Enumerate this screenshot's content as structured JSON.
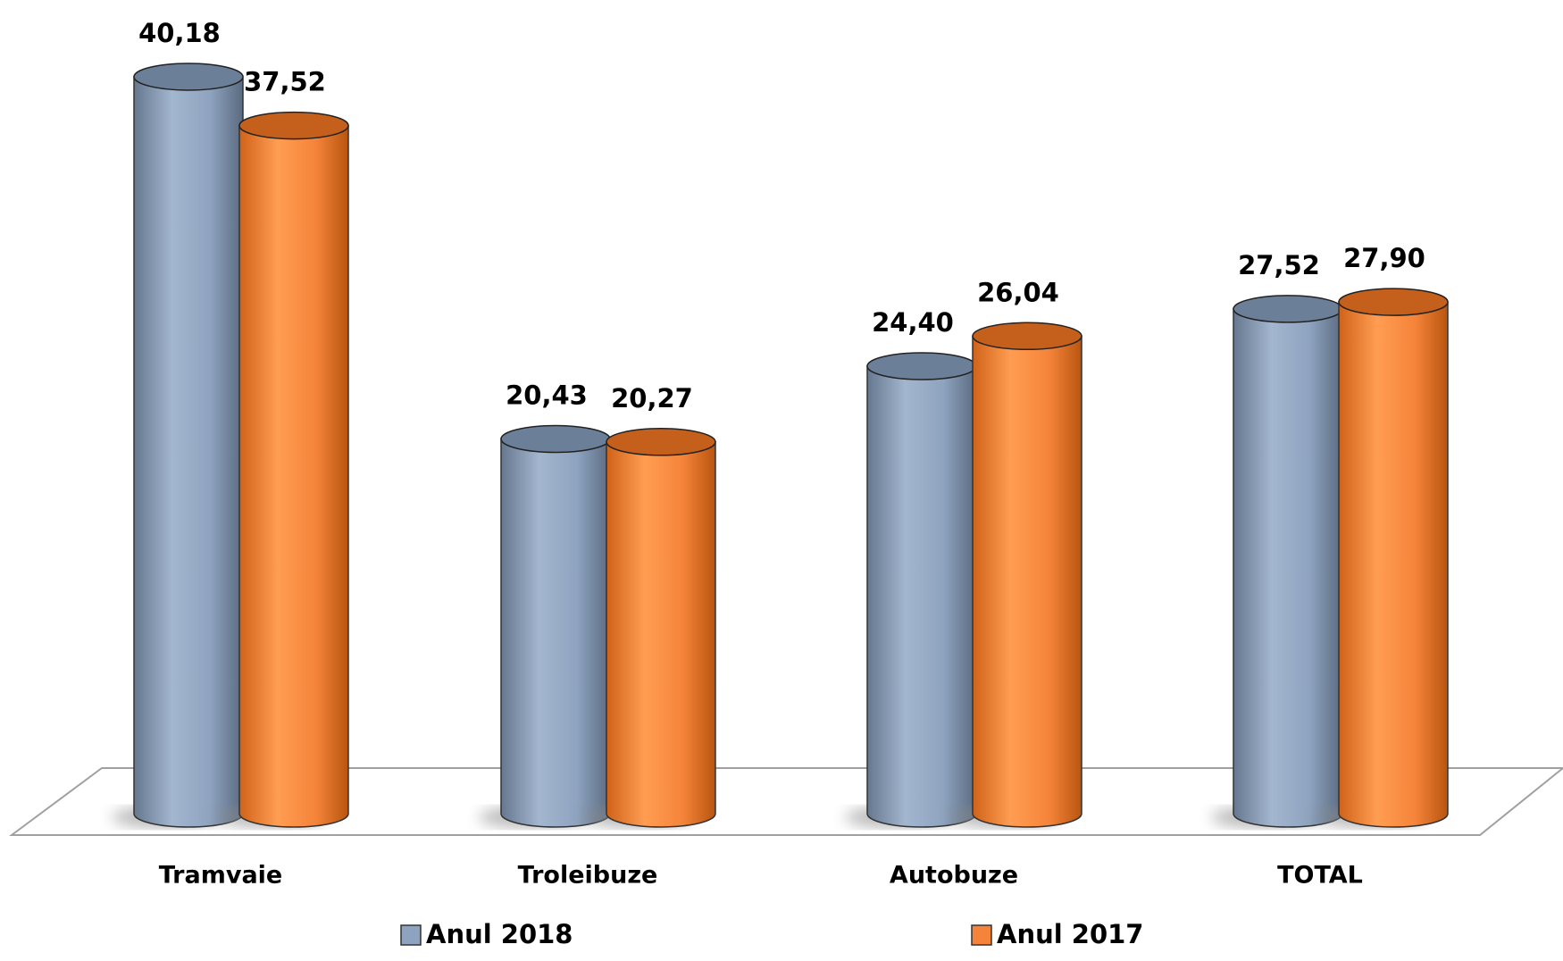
{
  "chart_data": {
    "type": "bar",
    "categories": [
      "Tramvaie",
      "Troleibuze",
      "Autobuze",
      "TOTAL"
    ],
    "series": [
      {
        "name": "Anul 2018",
        "color": "#8ea3bf",
        "values": [
          40.18,
          20.43,
          24.4,
          27.52
        ],
        "value_labels": [
          "40,18",
          "20,43",
          "24,40",
          "27,52"
        ]
      },
      {
        "name": "Anul 2017",
        "color": "#f5843a",
        "values": [
          37.52,
          20.27,
          26.04,
          27.9
        ],
        "value_labels": [
          "37,52",
          "20,27",
          "26,04",
          "27,90"
        ]
      }
    ],
    "ylim": [
      0,
      45
    ]
  }
}
